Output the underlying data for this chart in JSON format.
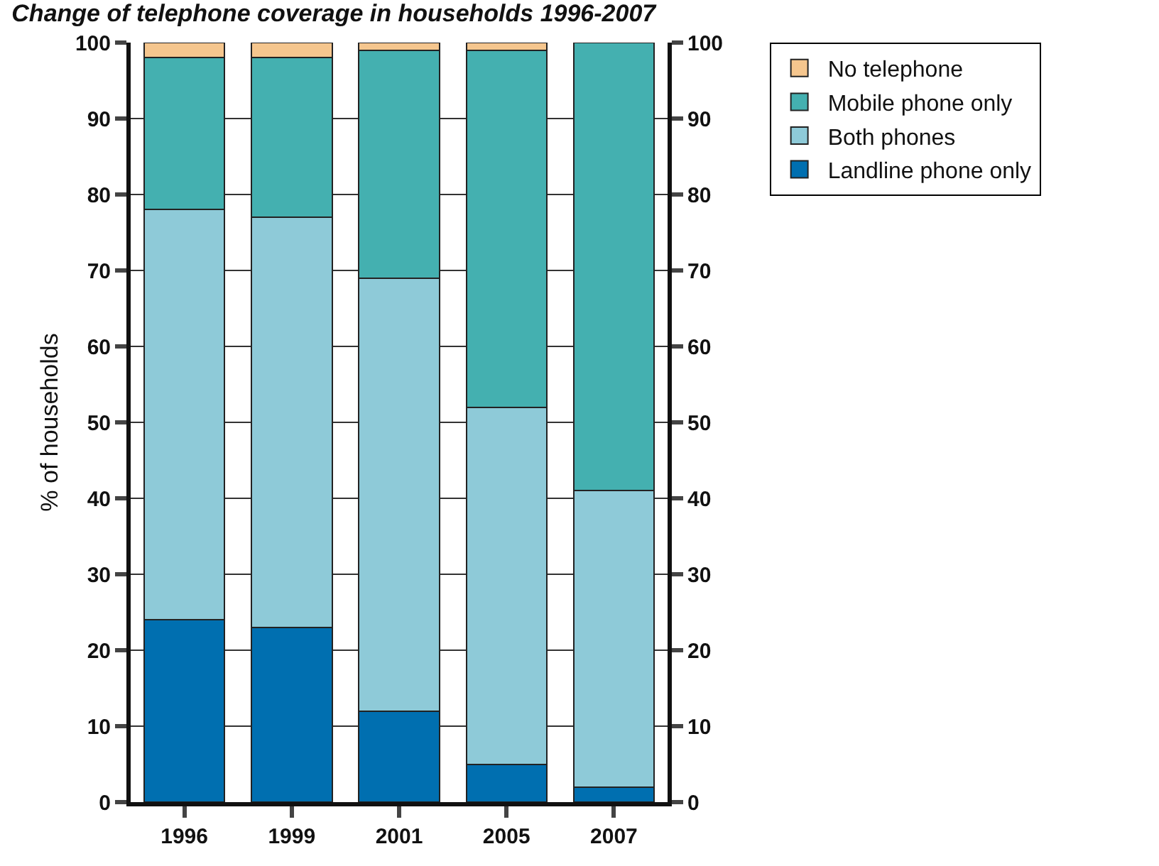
{
  "chart_data": {
    "type": "bar",
    "stacked": true,
    "title": "Change of telephone coverage in households 1996-2007",
    "ylabel": "% of households",
    "categories": [
      "1996",
      "1999",
      "2001",
      "2005",
      "2007"
    ],
    "series": [
      {
        "name": "Landline phone only",
        "color": "#006fb0",
        "values": [
          24,
          23,
          12,
          5,
          2
        ]
      },
      {
        "name": "Both phones",
        "color": "#8ecad8",
        "values": [
          54,
          54,
          57,
          47,
          39
        ]
      },
      {
        "name": "Mobile phone only",
        "color": "#44b0b0",
        "values": [
          20,
          21,
          30,
          47,
          59
        ]
      },
      {
        "name": "No telephone",
        "color": "#f5c68e",
        "values": [
          2,
          2,
          1,
          1,
          0
        ]
      }
    ],
    "ylim": [
      0,
      100
    ],
    "yticks": [
      0,
      10,
      20,
      30,
      40,
      50,
      60,
      70,
      80,
      90,
      100
    ],
    "y2lim": [
      0,
      100
    ],
    "y2ticks": [
      0,
      10,
      20,
      30,
      40,
      50,
      60,
      70,
      80,
      90,
      100
    ],
    "grid": "y",
    "legend": "top right"
  }
}
